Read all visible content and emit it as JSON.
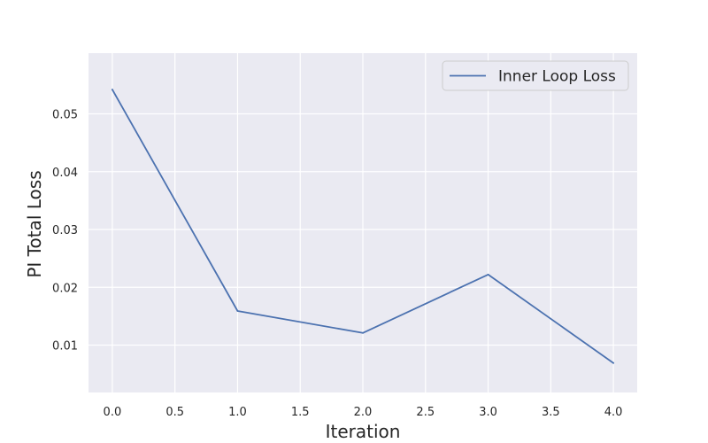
{
  "chart_data": {
    "type": "line",
    "xlabel": "Iteration",
    "ylabel": "PI Total Loss",
    "x": [
      0,
      1,
      2,
      3,
      4
    ],
    "series": [
      {
        "name": "Inner Loop Loss",
        "color": "#4c72b0",
        "values": [
          0.0542,
          0.0159,
          0.0121,
          0.0222,
          0.0069
        ]
      }
    ],
    "xlim": [
      -0.19,
      4.19
    ],
    "ylim": [
      0.0018,
      0.0605
    ],
    "xticks": [
      0.0,
      0.5,
      1.0,
      1.5,
      2.0,
      2.5,
      3.0,
      3.5,
      4.0
    ],
    "xtick_labels": [
      "0.0",
      "0.5",
      "1.0",
      "1.5",
      "2.0",
      "2.5",
      "3.0",
      "3.5",
      "4.0"
    ],
    "yticks": [
      0.01,
      0.02,
      0.03,
      0.04,
      0.05
    ],
    "ytick_labels": [
      "0.01",
      "0.02",
      "0.03",
      "0.04",
      "0.05"
    ],
    "grid": true,
    "legend_position": "top-right",
    "colors": {
      "plot_background": "#eaeaf2",
      "grid": "#ffffff"
    }
  }
}
